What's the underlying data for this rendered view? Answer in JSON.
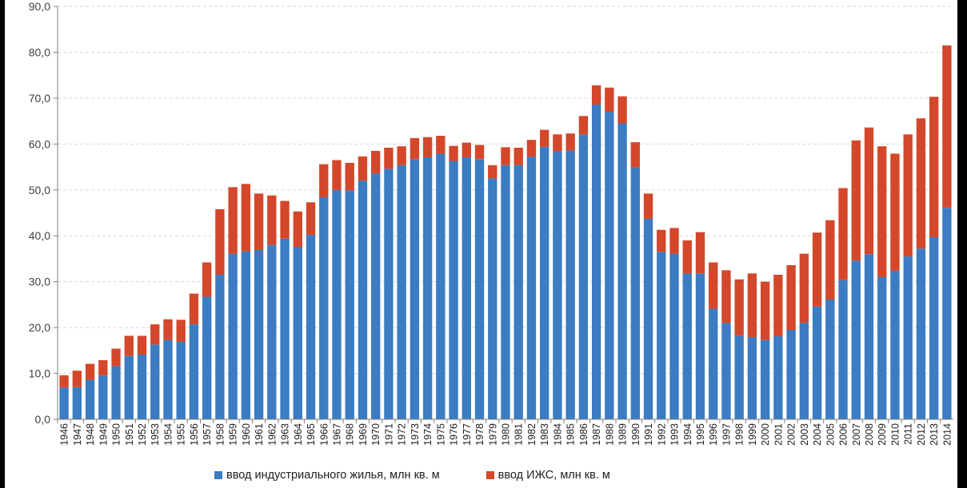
{
  "chart_data": {
    "type": "bar",
    "stacked": true,
    "title": "",
    "xlabel": "",
    "ylabel": "",
    "ylim": [
      0,
      90
    ],
    "yticks": [
      "0,0",
      "10,0",
      "20,0",
      "30,0",
      "40,0",
      "50,0",
      "60,0",
      "70,0",
      "80,0",
      "90,0"
    ],
    "grid": true,
    "legend_position": "bottom",
    "categories": [
      "1946",
      "1947",
      "1948",
      "1949",
      "1950",
      "1951",
      "1952",
      "1953",
      "1954",
      "1955",
      "1956",
      "1957",
      "1958",
      "1959",
      "1960",
      "1961",
      "1962",
      "1963",
      "1964",
      "1965",
      "1966",
      "1967",
      "1968",
      "1969",
      "1970",
      "1971",
      "1972",
      "1973",
      "1974",
      "1975",
      "1976",
      "1977",
      "1978",
      "1979",
      "1980",
      "1981",
      "1982",
      "1983",
      "1984",
      "1985",
      "1986",
      "1987",
      "1988",
      "1989",
      "1990",
      "1991",
      "1992",
      "1993",
      "1994",
      "1995",
      "1996",
      "1997",
      "1998",
      "1999",
      "2000",
      "2001",
      "2002",
      "2003",
      "2004",
      "2005",
      "2006",
      "2007",
      "2008",
      "2009",
      "2010",
      "2011",
      "2012",
      "2013",
      "2014"
    ],
    "series": [
      {
        "name": "ввод индустриального жилья, млн кв. м",
        "color": "#3b7cc2",
        "values": [
          6.9,
          7.0,
          8.6,
          9.6,
          11.6,
          13.8,
          14.1,
          16.3,
          17.3,
          16.9,
          20.7,
          26.7,
          31.5,
          36.1,
          36.6,
          36.9,
          38.0,
          39.4,
          37.6,
          40.2,
          48.4,
          50.0,
          49.9,
          52.0,
          53.6,
          54.6,
          55.4,
          56.7,
          57.1,
          57.9,
          56.3,
          57.1,
          56.7,
          52.5,
          55.4,
          55.4,
          57.2,
          59.4,
          58.4,
          58.6,
          62.1,
          68.6,
          67.0,
          64.5,
          54.9,
          43.7,
          36.5,
          36.1,
          31.8,
          31.8,
          24.1,
          21.0,
          18.3,
          17.9,
          17.3,
          18.1,
          19.5,
          21.0,
          24.6,
          26.1,
          30.4,
          34.6,
          36.0,
          31.0,
          32.4,
          35.5,
          37.2,
          39.7,
          46.1
        ]
      },
      {
        "name": "ввод ИЖС, млн кв. м",
        "color": "#d4472a",
        "values": [
          2.7,
          3.6,
          3.5,
          3.3,
          3.8,
          4.4,
          4.1,
          4.4,
          4.5,
          4.8,
          6.7,
          7.5,
          14.3,
          14.5,
          14.7,
          12.3,
          10.8,
          8.2,
          7.7,
          7.1,
          7.2,
          6.5,
          6.0,
          5.3,
          4.9,
          4.6,
          4.1,
          4.6,
          4.4,
          3.9,
          3.3,
          3.2,
          3.1,
          2.9,
          3.9,
          3.8,
          3.7,
          3.7,
          3.7,
          3.7,
          4.0,
          4.2,
          5.3,
          5.9,
          5.5,
          5.5,
          4.8,
          5.6,
          7.2,
          9.0,
          10.1,
          11.5,
          12.2,
          13.9,
          12.7,
          13.4,
          14.1,
          15.1,
          16.1,
          17.3,
          20.0,
          26.2,
          27.6,
          28.5,
          25.5,
          26.6,
          28.4,
          30.6,
          35.4
        ]
      }
    ]
  }
}
